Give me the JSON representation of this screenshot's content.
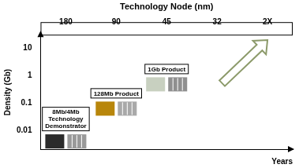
{
  "chart_data": {
    "type": "line",
    "x_top_label": "Technology Node (nm)",
    "x_label": "Years",
    "y_label": "Density (Gb)",
    "categories": [
      "180",
      "90",
      "45",
      "32",
      "2X"
    ],
    "values": [
      0.008,
      0.128,
      1,
      null,
      null
    ],
    "annotations": [
      "8Mb/4Mb Technology Demonstrator",
      "128Mb Product",
      "1Gb Product",
      null,
      null
    ],
    "log": "y",
    "ylim": [
      0.002,
      30
    ],
    "yticks": [
      0.01,
      0.1,
      1,
      10
    ],
    "grid": false
  }
}
